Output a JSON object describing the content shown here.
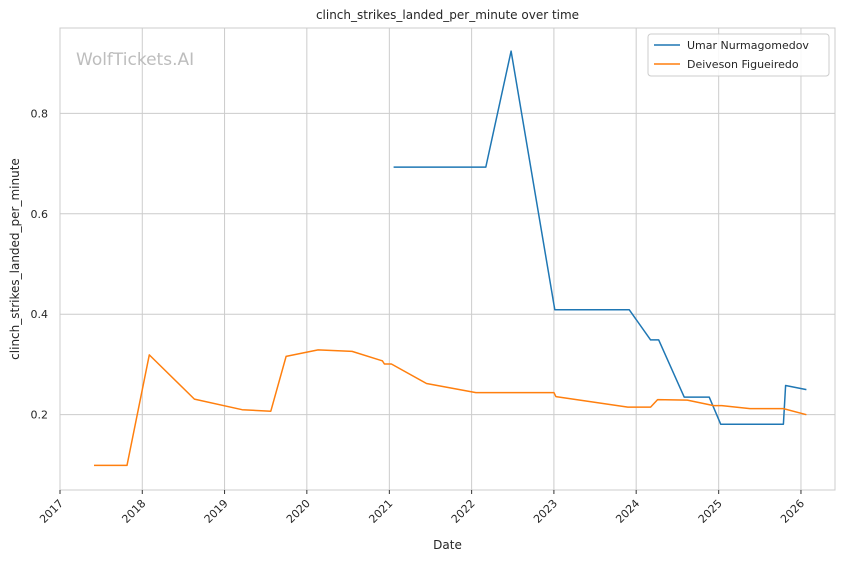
{
  "chart_data": {
    "type": "line",
    "title": "clinch_strikes_landed_per_minute over time",
    "xlabel": "Date",
    "ylabel": "clinch_strikes_landed_per_minute",
    "watermark": "WolfTickets.AI",
    "x_range": [
      "2017-01-01",
      "2026-06-01"
    ],
    "ylim": [
      0.05,
      0.97
    ],
    "x_ticks": [
      "2017",
      "2018",
      "2019",
      "2020",
      "2021",
      "2022",
      "2023",
      "2024",
      "2025",
      "2026"
    ],
    "y_ticks": [
      0.2,
      0.4,
      0.6,
      0.8
    ],
    "grid": true,
    "legend_position": "top-right",
    "series": [
      {
        "name": "Umar Nurmagomedov",
        "color": "#1f77b4",
        "points": [
          [
            "2021-01-20",
            0.693
          ],
          [
            "2022-03-05",
            0.693
          ],
          [
            "2022-06-25",
            0.924
          ],
          [
            "2023-01-05",
            0.409
          ],
          [
            "2023-12-01",
            0.409
          ],
          [
            "2024-03-05",
            0.349
          ],
          [
            "2024-04-10",
            0.349
          ],
          [
            "2024-08-01",
            0.235
          ],
          [
            "2024-11-20",
            0.235
          ],
          [
            "2025-01-10",
            0.181
          ],
          [
            "2025-10-15",
            0.181
          ],
          [
            "2025-10-25",
            0.258
          ],
          [
            "2026-01-25",
            0.25
          ]
        ]
      },
      {
        "name": "Deiveson Figueiredo",
        "color": "#ff7f0e",
        "points": [
          [
            "2017-06-01",
            0.099
          ],
          [
            "2017-10-25",
            0.099
          ],
          [
            "2018-02-01",
            0.319
          ],
          [
            "2018-08-20",
            0.231
          ],
          [
            "2019-03-20",
            0.21
          ],
          [
            "2019-07-25",
            0.207
          ],
          [
            "2019-10-01",
            0.316
          ],
          [
            "2020-02-20",
            0.329
          ],
          [
            "2020-07-20",
            0.326
          ],
          [
            "2020-12-01",
            0.307
          ],
          [
            "2020-12-10",
            0.301
          ],
          [
            "2021-01-10",
            0.301
          ],
          [
            "2021-06-15",
            0.262
          ],
          [
            "2022-01-20",
            0.244
          ],
          [
            "2023-01-01",
            0.244
          ],
          [
            "2023-01-10",
            0.236
          ],
          [
            "2023-11-25",
            0.215
          ],
          [
            "2024-03-05",
            0.215
          ],
          [
            "2024-04-05",
            0.23
          ],
          [
            "2024-08-15",
            0.229
          ],
          [
            "2024-12-10",
            0.218
          ],
          [
            "2025-01-15",
            0.218
          ],
          [
            "2025-05-20",
            0.212
          ],
          [
            "2025-10-15",
            0.212
          ],
          [
            "2026-01-25",
            0.2
          ]
        ]
      }
    ]
  }
}
